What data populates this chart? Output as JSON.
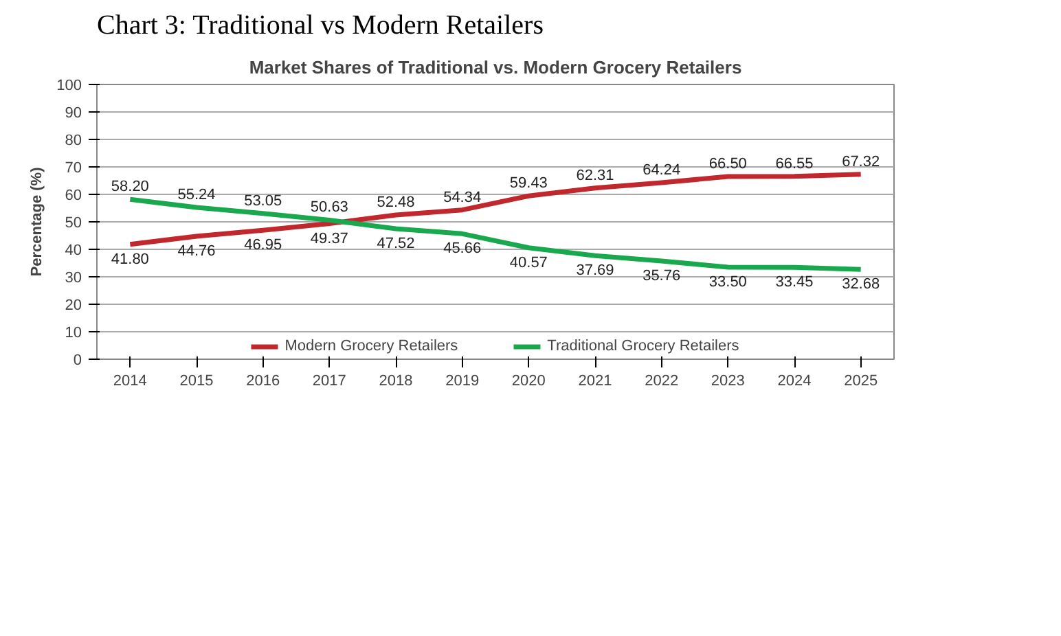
{
  "chart_data": {
    "type": "line",
    "title": "Chart 3: Traditional vs Modern Retailers",
    "subtitle": "Market Shares of Traditional vs. Modern Grocery Retailers",
    "ylabel": "Percentage (%)",
    "categories": [
      "2014",
      "2015",
      "2016",
      "2017",
      "2018",
      "2019",
      "2020",
      "2021",
      "2022",
      "2023",
      "2024",
      "2025"
    ],
    "series": [
      {
        "name": "Modern Grocery Retailers",
        "color": "#c0282d",
        "values": [
          41.8,
          44.76,
          46.95,
          49.37,
          52.48,
          54.34,
          59.43,
          62.31,
          64.24,
          66.5,
          66.55,
          67.32
        ],
        "value_labels": [
          "41.80",
          "44.76",
          "46.95",
          "49.37",
          "52.48",
          "54.34",
          "59.43",
          "62.31",
          "64.24",
          "66.50",
          "66.55",
          "67.32"
        ]
      },
      {
        "name": "Traditional Grocery Retailers",
        "color": "#1aa84f",
        "values": [
          58.2,
          55.24,
          53.05,
          50.63,
          47.52,
          45.66,
          40.57,
          37.69,
          35.76,
          33.5,
          33.45,
          32.68
        ],
        "value_labels": [
          "58.20",
          "55.24",
          "53.05",
          "50.63",
          "47.52",
          "45.66",
          "40.57",
          "37.69",
          "35.76",
          "33.50",
          "33.45",
          "32.68"
        ]
      }
    ],
    "ylim": [
      0,
      100
    ],
    "yticks": [
      0,
      10,
      20,
      30,
      40,
      50,
      60,
      70,
      80,
      90,
      100
    ],
    "grid": "y",
    "legend": "bottom",
    "line_style": "solid"
  }
}
